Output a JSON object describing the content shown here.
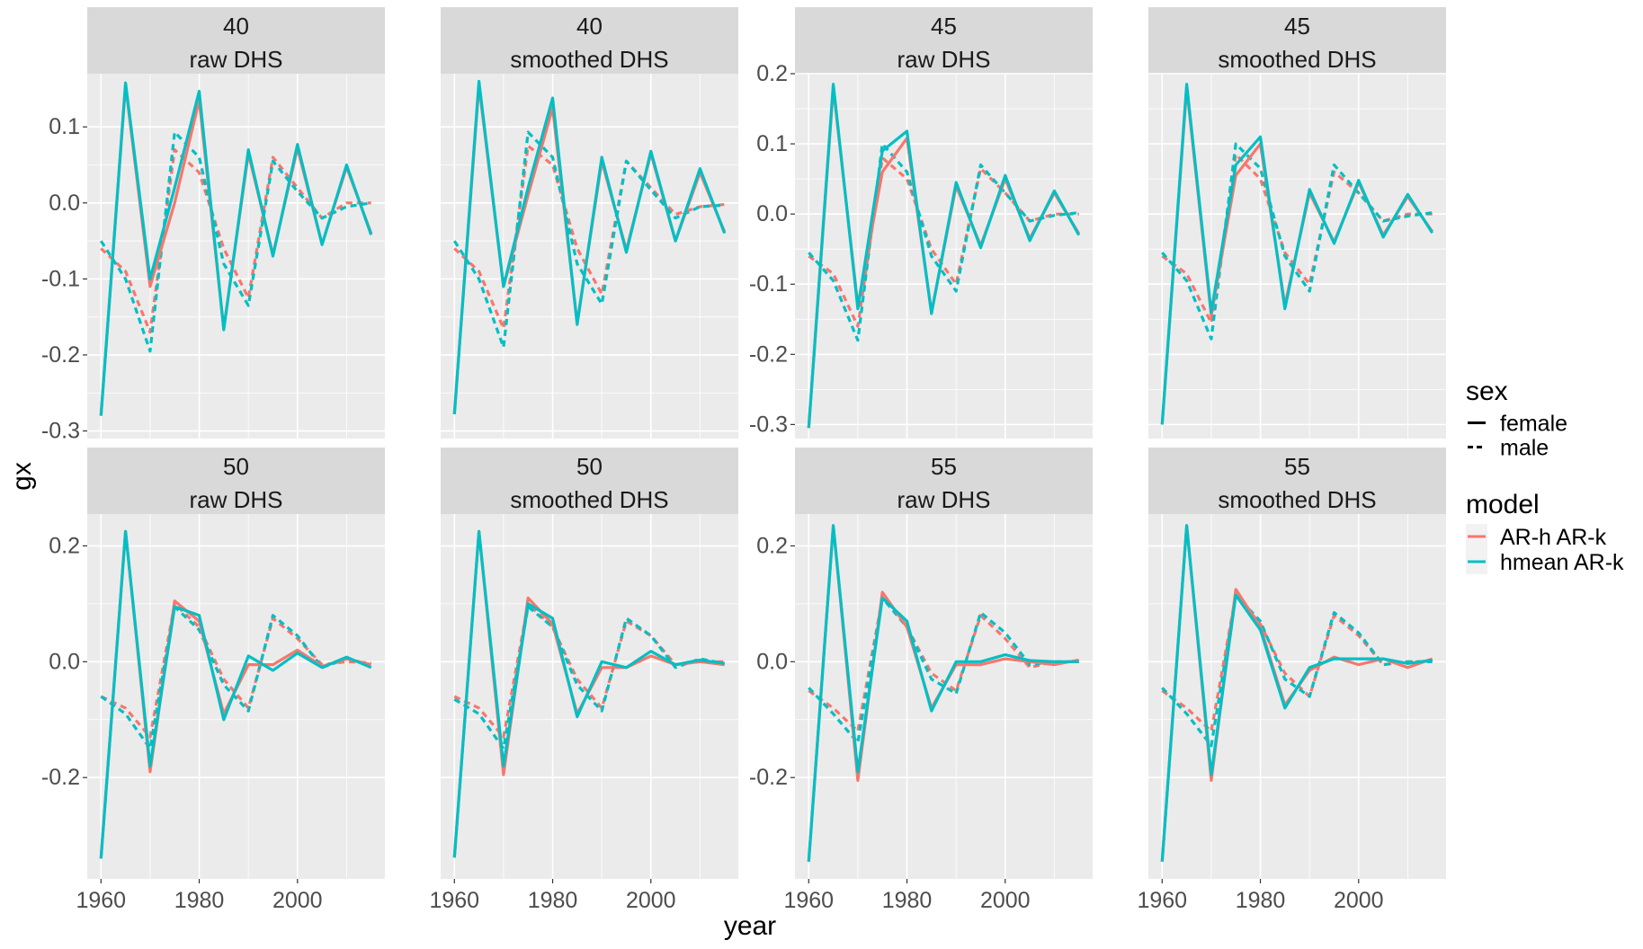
{
  "chart_data": {
    "type": "line",
    "xlabel": "year",
    "ylabel": "gx",
    "legend": {
      "position": "right",
      "groups": [
        {
          "title": "sex",
          "entries": [
            {
              "label": "female",
              "linetype": "solid"
            },
            {
              "label": "male",
              "linetype": "dashed"
            }
          ]
        },
        {
          "title": "model",
          "entries": [
            {
              "label": "AR-h AR-k",
              "color": "#F8766D"
            },
            {
              "label": "hmean AR-k",
              "color": "#00BFC4"
            }
          ]
        }
      ]
    },
    "colors": {
      "AR-h AR-k": "#F8766D",
      "hmean AR-k": "#00BFC4"
    },
    "x": [
      1960,
      1965,
      1970,
      1975,
      1980,
      1985,
      1990,
      1995,
      2000,
      2005,
      2010,
      2015
    ],
    "x_ticks": [
      1960,
      1980,
      2000
    ],
    "x_range": [
      1957.2,
      2017.8
    ],
    "grid": true,
    "facet_rows": [
      {
        "ylim": [
          -0.31,
          0.17
        ],
        "y_ticks": [
          -0.3,
          -0.2,
          -0.1,
          0.0,
          0.1
        ],
        "y_tick_labels": [
          "-0.3",
          "-0.2",
          "-0.1",
          "0.0",
          "0.1"
        ],
        "panels": [
          0,
          1
        ]
      },
      {
        "ylim": [
          -0.32,
          0.2
        ],
        "y_ticks": [
          -0.3,
          -0.2,
          -0.1,
          0.0,
          0.1,
          0.2
        ],
        "y_tick_labels": [
          "-0.3",
          "-0.2",
          "-0.1",
          "0.0",
          "0.1",
          "0.2"
        ],
        "panels": [
          2,
          3
        ]
      },
      {
        "ylim": [
          -0.375,
          0.255
        ],
        "y_ticks": [
          -0.2,
          0.0,
          0.2
        ],
        "y_tick_labels": [
          "-0.2",
          "0.0",
          "0.2"
        ],
        "panels": [
          4,
          5,
          6,
          7
        ]
      }
    ],
    "panels": [
      {
        "age": "40",
        "source": "raw DHS",
        "series": [
          {
            "sex": "female",
            "model": "AR-h AR-k",
            "values": [
              -0.28,
              0.155,
              -0.11,
              0.0,
              0.135,
              -0.165,
              0.065,
              -0.068,
              0.072,
              -0.054,
              0.047,
              -0.04
            ]
          },
          {
            "sex": "female",
            "model": "hmean AR-k",
            "values": [
              -0.28,
              0.158,
              -0.1,
              0.02,
              0.147,
              -0.167,
              0.07,
              -0.07,
              0.077,
              -0.055,
              0.05,
              -0.042
            ]
          },
          {
            "sex": "male",
            "model": "AR-h AR-k",
            "values": [
              -0.06,
              -0.09,
              -0.17,
              0.07,
              0.04,
              -0.06,
              -0.125,
              0.06,
              0.02,
              -0.02,
              0.0,
              0.0
            ]
          },
          {
            "sex": "male",
            "model": "hmean AR-k",
            "values": [
              -0.05,
              -0.1,
              -0.195,
              0.093,
              0.06,
              -0.08,
              -0.135,
              0.055,
              0.015,
              -0.02,
              -0.005,
              0.0
            ]
          }
        ]
      },
      {
        "age": "40",
        "source": "smoothed DHS",
        "series": [
          {
            "sex": "female",
            "model": "AR-h AR-k",
            "values": [
              -0.278,
              0.155,
              -0.11,
              0.01,
              0.125,
              -0.158,
              0.055,
              -0.062,
              0.065,
              -0.05,
              0.04,
              -0.038
            ]
          },
          {
            "sex": "female",
            "model": "hmean AR-k",
            "values": [
              -0.278,
              0.16,
              -0.11,
              0.02,
              0.138,
              -0.16,
              0.06,
              -0.065,
              0.068,
              -0.05,
              0.045,
              -0.04
            ]
          },
          {
            "sex": "male",
            "model": "AR-h AR-k",
            "values": [
              -0.06,
              -0.09,
              -0.165,
              0.075,
              0.05,
              -0.06,
              -0.12,
              0.055,
              0.02,
              -0.015,
              -0.005,
              -0.002
            ]
          },
          {
            "sex": "male",
            "model": "hmean AR-k",
            "values": [
              -0.05,
              -0.1,
              -0.19,
              0.093,
              0.06,
              -0.08,
              -0.133,
              0.055,
              0.017,
              -0.02,
              -0.005,
              -0.003
            ]
          }
        ]
      },
      {
        "age": "45",
        "source": "raw DHS",
        "series": [
          {
            "sex": "female",
            "model": "AR-h AR-k",
            "values": [
              -0.305,
              0.18,
              -0.13,
              0.06,
              0.108,
              -0.14,
              0.04,
              -0.045,
              0.05,
              -0.035,
              0.03,
              -0.028
            ]
          },
          {
            "sex": "female",
            "model": "hmean AR-k",
            "values": [
              -0.305,
              0.185,
              -0.135,
              0.09,
              0.118,
              -0.142,
              0.045,
              -0.048,
              0.055,
              -0.038,
              0.033,
              -0.03
            ]
          },
          {
            "sex": "male",
            "model": "AR-h AR-k",
            "values": [
              -0.06,
              -0.085,
              -0.16,
              0.08,
              0.05,
              -0.05,
              -0.1,
              0.065,
              0.03,
              -0.01,
              0.0,
              0.0
            ]
          },
          {
            "sex": "male",
            "model": "hmean AR-k",
            "values": [
              -0.055,
              -0.095,
              -0.18,
              0.1,
              0.06,
              -0.06,
              -0.11,
              0.07,
              0.03,
              -0.01,
              -0.002,
              0.002
            ]
          }
        ]
      },
      {
        "age": "45",
        "source": "smoothed DHS",
        "series": [
          {
            "sex": "female",
            "model": "AR-h AR-k",
            "values": [
              -0.3,
              0.18,
              -0.145,
              0.055,
              0.1,
              -0.13,
              0.03,
              -0.04,
              0.045,
              -0.03,
              0.025,
              -0.025
            ]
          },
          {
            "sex": "female",
            "model": "hmean AR-k",
            "values": [
              -0.3,
              0.185,
              -0.14,
              0.07,
              0.11,
              -0.135,
              0.035,
              -0.042,
              0.048,
              -0.033,
              0.028,
              -0.027
            ]
          },
          {
            "sex": "male",
            "model": "AR-h AR-k",
            "values": [
              -0.06,
              -0.085,
              -0.155,
              0.085,
              0.05,
              -0.055,
              -0.1,
              0.06,
              0.03,
              -0.01,
              0.0,
              0.0
            ]
          },
          {
            "sex": "male",
            "model": "hmean AR-k",
            "values": [
              -0.055,
              -0.095,
              -0.178,
              0.1,
              0.065,
              -0.06,
              -0.11,
              0.07,
              0.03,
              -0.01,
              -0.003,
              0.002
            ]
          }
        ]
      },
      {
        "age": "50",
        "source": "raw DHS",
        "series": [
          {
            "sex": "female",
            "model": "AR-h AR-k",
            "values": [
              -0.34,
              0.225,
              -0.19,
              0.105,
              0.07,
              -0.09,
              -0.005,
              -0.005,
              0.02,
              -0.008,
              0.005,
              -0.005
            ]
          },
          {
            "sex": "female",
            "model": "hmean AR-k",
            "values": [
              -0.34,
              0.225,
              -0.18,
              0.095,
              0.08,
              -0.1,
              0.01,
              -0.015,
              0.015,
              -0.01,
              0.008,
              -0.01
            ]
          },
          {
            "sex": "male",
            "model": "AR-h AR-k",
            "values": [
              -0.06,
              -0.08,
              -0.13,
              0.1,
              0.06,
              -0.03,
              -0.08,
              0.075,
              0.04,
              -0.005,
              0.0,
              -0.002
            ]
          },
          {
            "sex": "male",
            "model": "hmean AR-k",
            "values": [
              -0.06,
              -0.09,
              -0.15,
              0.095,
              0.055,
              -0.04,
              -0.085,
              0.08,
              0.045,
              -0.01,
              0.005,
              -0.005
            ]
          }
        ]
      },
      {
        "age": "50",
        "source": "smoothed DHS",
        "series": [
          {
            "sex": "female",
            "model": "AR-h AR-k",
            "values": [
              -0.338,
              0.225,
              -0.195,
              0.11,
              0.065,
              -0.09,
              -0.01,
              -0.01,
              0.01,
              -0.005,
              0.0,
              -0.005
            ]
          },
          {
            "sex": "female",
            "model": "hmean AR-k",
            "values": [
              -0.338,
              0.225,
              -0.18,
              0.1,
              0.075,
              -0.095,
              0.0,
              -0.01,
              0.018,
              -0.005,
              0.003,
              -0.003
            ]
          },
          {
            "sex": "male",
            "model": "AR-h AR-k",
            "values": [
              -0.06,
              -0.08,
              -0.13,
              0.1,
              0.06,
              -0.03,
              -0.08,
              0.07,
              0.045,
              -0.005,
              0.0,
              0.0
            ]
          },
          {
            "sex": "male",
            "model": "hmean AR-k",
            "values": [
              -0.065,
              -0.09,
              -0.15,
              0.095,
              0.06,
              -0.04,
              -0.085,
              0.075,
              0.045,
              -0.01,
              0.005,
              -0.003
            ]
          }
        ]
      },
      {
        "age": "55",
        "source": "raw DHS",
        "series": [
          {
            "sex": "female",
            "model": "AR-h AR-k",
            "values": [
              -0.345,
              0.235,
              -0.205,
              0.12,
              0.06,
              -0.08,
              -0.005,
              -0.005,
              0.005,
              0.0,
              -0.005,
              0.003
            ]
          },
          {
            "sex": "female",
            "model": "hmean AR-k",
            "values": [
              -0.345,
              0.235,
              -0.19,
              0.11,
              0.07,
              -0.085,
              0.0,
              0.0,
              0.012,
              0.002,
              0.0,
              0.0
            ]
          },
          {
            "sex": "male",
            "model": "AR-h AR-k",
            "values": [
              -0.05,
              -0.08,
              -0.12,
              0.11,
              0.06,
              -0.02,
              -0.05,
              0.08,
              0.04,
              -0.01,
              0.0,
              0.0
            ]
          },
          {
            "sex": "male",
            "model": "hmean AR-k",
            "values": [
              -0.045,
              -0.09,
              -0.14,
              0.11,
              0.06,
              -0.03,
              -0.055,
              0.085,
              0.05,
              -0.005,
              0.0,
              0.0
            ]
          }
        ]
      },
      {
        "age": "55",
        "source": "smoothed DHS",
        "series": [
          {
            "sex": "female",
            "model": "AR-h AR-k",
            "values": [
              -0.345,
              0.235,
              -0.205,
              0.125,
              0.06,
              -0.075,
              -0.015,
              0.008,
              -0.005,
              0.005,
              -0.01,
              0.005
            ]
          },
          {
            "sex": "female",
            "model": "hmean AR-k",
            "values": [
              -0.345,
              0.235,
              -0.195,
              0.115,
              0.055,
              -0.08,
              -0.01,
              0.005,
              0.005,
              0.005,
              -0.003,
              0.003
            ]
          },
          {
            "sex": "male",
            "model": "AR-h AR-k",
            "values": [
              -0.05,
              -0.08,
              -0.12,
              0.115,
              0.065,
              -0.02,
              -0.06,
              0.08,
              0.045,
              -0.005,
              0.0,
              0.0
            ]
          },
          {
            "sex": "male",
            "model": "hmean AR-k",
            "values": [
              -0.045,
              -0.09,
              -0.145,
              0.115,
              0.07,
              -0.03,
              -0.06,
              0.085,
              0.05,
              -0.005,
              0.0,
              0.0
            ]
          }
        ]
      }
    ]
  }
}
